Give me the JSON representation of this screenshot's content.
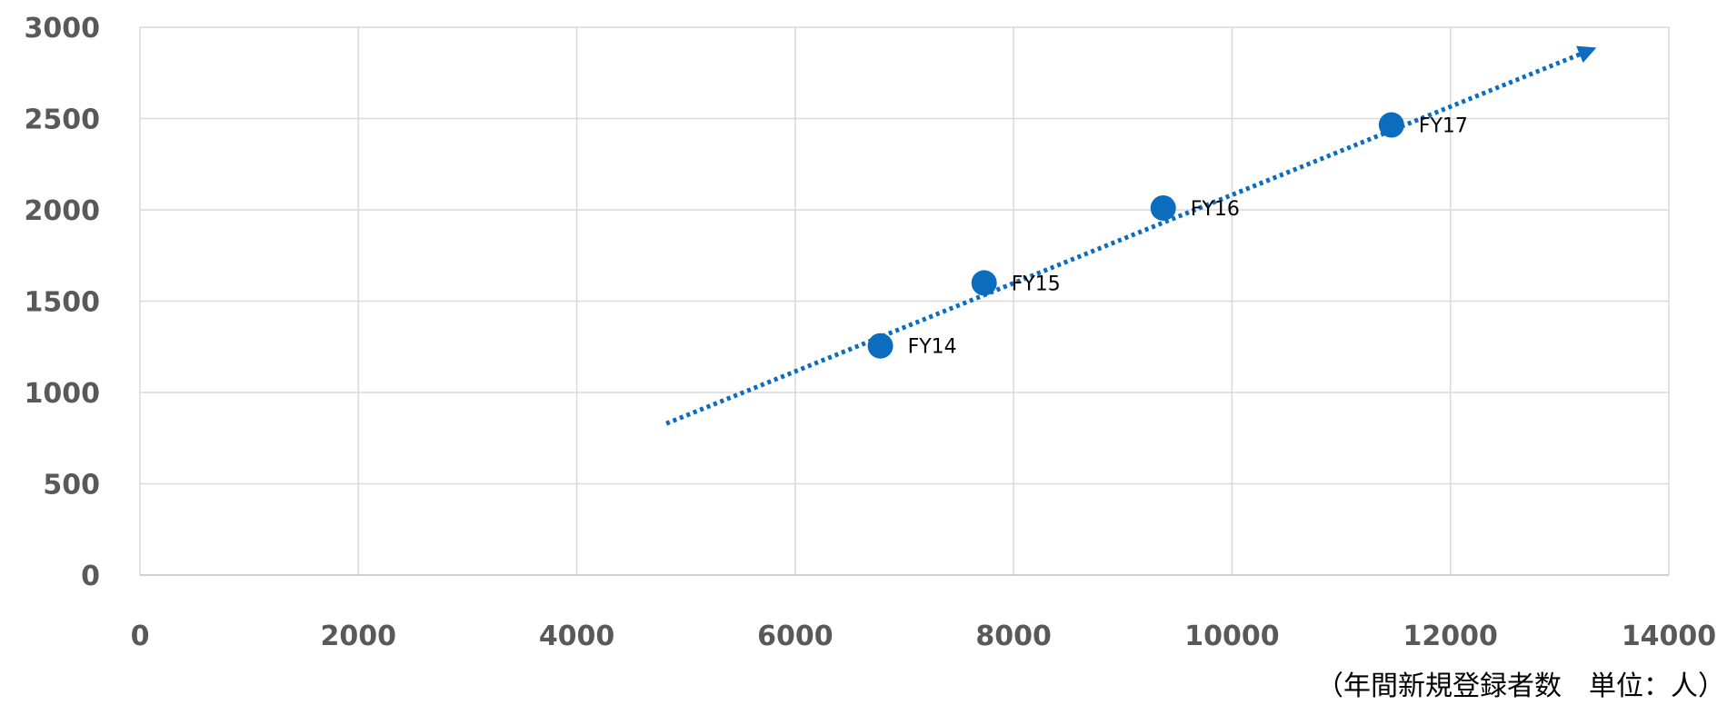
{
  "chart_data": {
    "type": "scatter",
    "x_unit_label": "（年間新規登録者数　単位：人）",
    "xlim": [
      0,
      14000
    ],
    "ylim": [
      0,
      3000
    ],
    "x_ticks": [
      0,
      2000,
      4000,
      6000,
      8000,
      10000,
      12000,
      14000
    ],
    "y_ticks": [
      0,
      500,
      1000,
      1500,
      2000,
      2500,
      3000
    ],
    "grid": true,
    "points": [
      {
        "label": "FY14",
        "x": 6780,
        "y": 1255
      },
      {
        "label": "FY15",
        "x": 7730,
        "y": 1600
      },
      {
        "label": "FY16",
        "x": 9370,
        "y": 2010
      },
      {
        "label": "FY17",
        "x": 11460,
        "y": 2465
      }
    ],
    "trendline": {
      "style": "dotted",
      "x_start": 4820,
      "y_start": 830,
      "x_end": 13260,
      "y_end": 2870
    },
    "colors": {
      "marker": "#0c6dbf",
      "trendline": "#0c6dbf",
      "grid": "#d9d9d9",
      "tick_text": "#595959"
    }
  }
}
